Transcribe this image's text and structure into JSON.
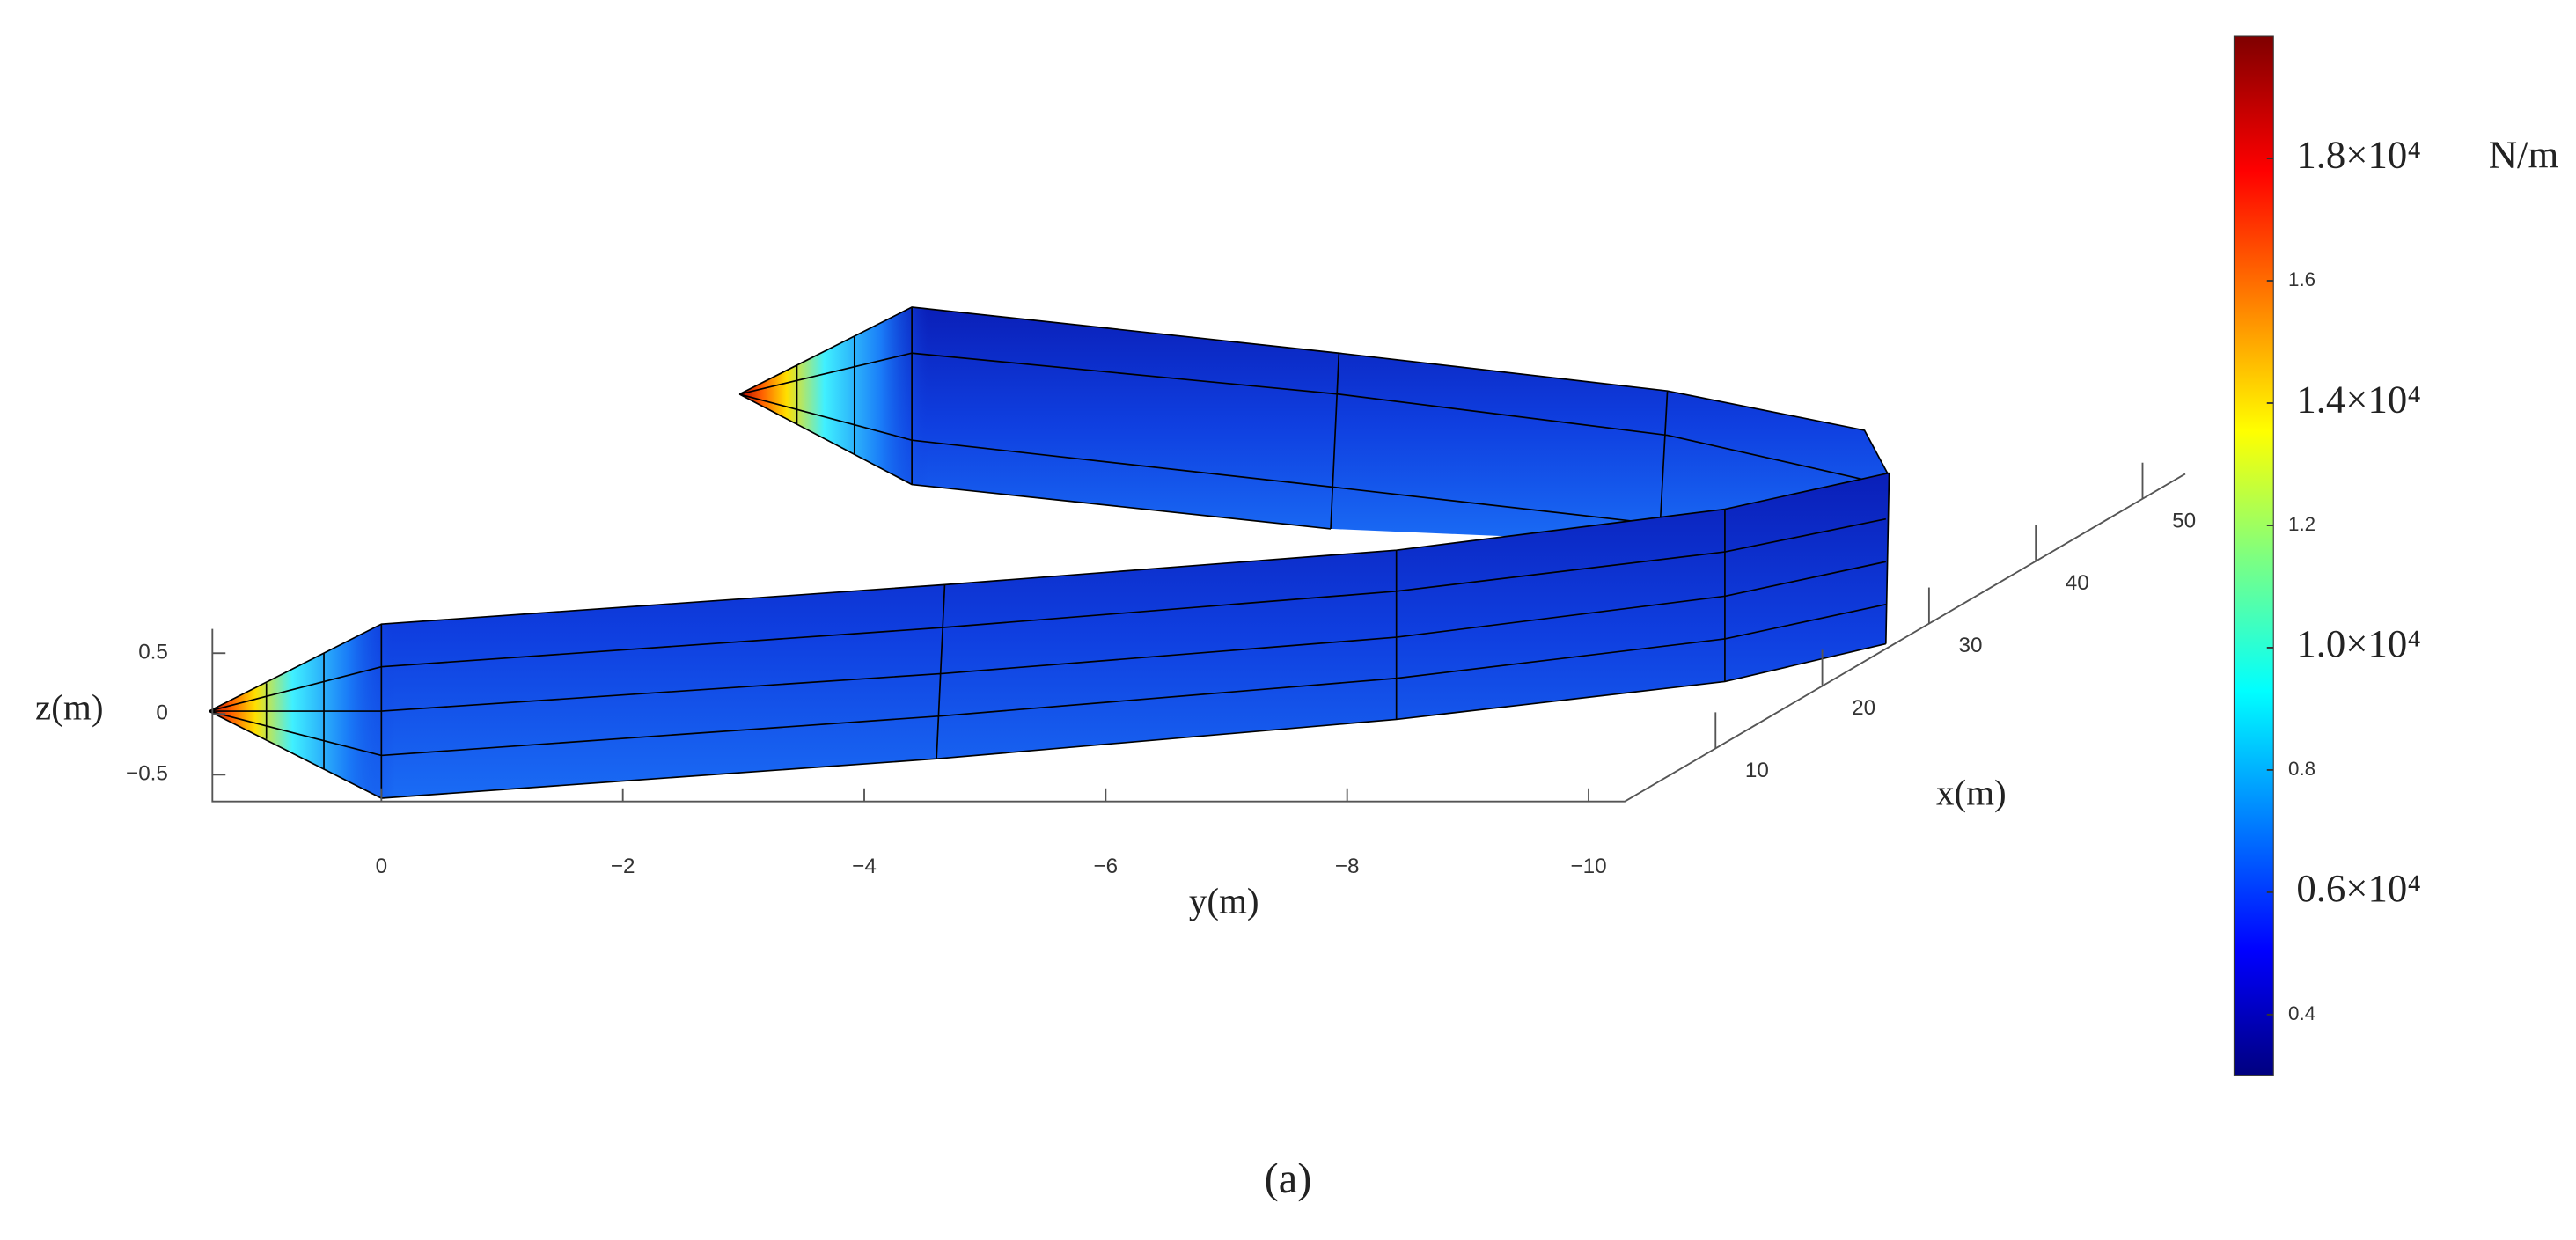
{
  "chart_data": {
    "type": "surface3d",
    "xlabel": "x(m)",
    "ylabel": "y(m)",
    "zlabel": "z(m)",
    "xlim": [
      1.5,
      54
    ],
    "xticks": [
      10,
      20,
      30,
      40,
      50
    ],
    "ylim": [
      1.4,
      -10.3
    ],
    "yticks": [
      0,
      {
        "value": -2,
        "label": "−2"
      },
      {
        "value": -4,
        "label": "−4"
      },
      {
        "value": -6,
        "label": "−6"
      },
      {
        "value": -8,
        "label": "−8"
      },
      {
        "value": -10,
        "label": "−10"
      }
    ],
    "zlim": [
      -0.72,
      0.7
    ],
    "zticks": [
      0.5,
      0,
      {
        "value": -0.5,
        "label": "−0.5"
      }
    ],
    "colorbar": {
      "colormap": "jet",
      "clim": [
        0.3,
        2.0
      ],
      "unit": "N/m",
      "ticks": [
        0.4,
        {
          "value": 0.6,
          "label": "0.6×10⁴"
        },
        0.8,
        {
          "value": 1.0,
          "label": "1.0×10⁴"
        },
        1.2,
        {
          "value": 1.4,
          "label": "1.4×10⁴"
        },
        1.6,
        {
          "value": 1.8,
          "label": "1.8×10⁴"
        }
      ]
    },
    "caption": "(a)"
  }
}
